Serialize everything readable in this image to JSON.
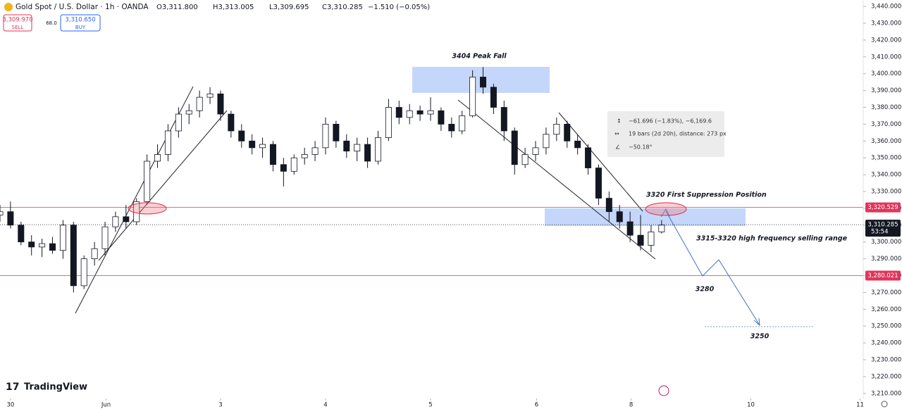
{
  "header": {
    "symbol": "Gold Spot / U.S. Dollar · 1h · OANDA",
    "ohlc": [
      "O3,311.800",
      "H3,313.005",
      "L3,309.695",
      "C3,310.285"
    ],
    "change": "−1.510 (−0.05%)",
    "sell_price": "3,309.970",
    "sell": "SELL",
    "spread": "68.0",
    "buy_price": "3,310.650",
    "buy": "BUY",
    "logo": "TradingView"
  },
  "chart_data": {
    "type": "candlestick",
    "x": [
      0,
      1,
      2,
      3,
      4,
      5,
      6,
      7,
      8,
      9,
      10,
      11,
      12,
      13,
      14,
      15,
      16,
      17,
      18,
      19,
      20,
      21,
      22,
      23,
      24,
      25,
      26,
      27,
      28,
      29,
      30,
      31,
      32,
      33,
      34,
      35,
      36,
      37,
      38,
      39,
      40,
      41,
      42,
      43,
      44,
      45,
      46,
      47,
      48,
      49,
      50,
      51,
      52,
      53,
      54,
      55,
      56,
      57,
      58,
      59,
      60,
      61,
      62,
      63
    ],
    "open": [
      3316,
      3318,
      3310,
      3300,
      3297,
      3299,
      3295,
      3310,
      3274,
      3290,
      3296,
      3309,
      3315,
      3312,
      3324,
      3348,
      3352,
      3366,
      3376,
      3378,
      3386,
      3388,
      3376,
      3366,
      3360,
      3356,
      3358,
      3346,
      3342,
      3350,
      3352,
      3356,
      3370,
      3360,
      3354,
      3358,
      3348,
      3362,
      3380,
      3374,
      3378,
      3376,
      3378,
      3370,
      3366,
      3375,
      3398,
      3392,
      3380,
      3366,
      3346,
      3352,
      3356,
      3364,
      3370,
      3360,
      3356,
      3344,
      3326,
      3318,
      3312,
      3304,
      3298,
      3306
    ],
    "high": [
      3322,
      3324,
      3312,
      3304,
      3302,
      3303,
      3313,
      3312,
      3292,
      3300,
      3312,
      3318,
      3322,
      3326,
      3352,
      3358,
      3370,
      3380,
      3382,
      3390,
      3392,
      3390,
      3378,
      3370,
      3364,
      3362,
      3360,
      3350,
      3352,
      3356,
      3360,
      3374,
      3372,
      3364,
      3362,
      3362,
      3366,
      3385,
      3384,
      3382,
      3381,
      3386,
      3380,
      3374,
      3378,
      3402,
      3404,
      3394,
      3384,
      3368,
      3356,
      3360,
      3368,
      3374,
      3372,
      3364,
      3358,
      3346,
      3330,
      3322,
      3318,
      3316,
      3310,
      3313
    ],
    "low": [
      3312,
      3308,
      3298,
      3292,
      3291,
      3293,
      3290,
      3270,
      3272,
      3286,
      3292,
      3306,
      3308,
      3310,
      3322,
      3344,
      3348,
      3362,
      3370,
      3374,
      3382,
      3372,
      3362,
      3356,
      3352,
      3350,
      3342,
      3333,
      3340,
      3346,
      3348,
      3352,
      3356,
      3350,
      3348,
      3344,
      3346,
      3360,
      3370,
      3370,
      3372,
      3372,
      3366,
      3362,
      3364,
      3374,
      3388,
      3376,
      3360,
      3340,
      3344,
      3348,
      3352,
      3360,
      3356,
      3352,
      3340,
      3322,
      3312,
      3308,
      3300,
      3295,
      3294,
      3305
    ],
    "close": [
      3318,
      3310,
      3300,
      3297,
      3299,
      3295,
      3310,
      3274,
      3290,
      3296,
      3309,
      3315,
      3312,
      3324,
      3348,
      3352,
      3366,
      3376,
      3378,
      3386,
      3388,
      3376,
      3366,
      3360,
      3356,
      3358,
      3346,
      3342,
      3350,
      3352,
      3356,
      3370,
      3360,
      3354,
      3358,
      3348,
      3362,
      3380,
      3374,
      3378,
      3376,
      3378,
      3370,
      3366,
      3375,
      3398,
      3392,
      3380,
      3366,
      3346,
      3352,
      3356,
      3364,
      3370,
      3360,
      3356,
      3344,
      3326,
      3318,
      3312,
      3304,
      3298,
      3306,
      3310
    ],
    "up_color": "#ffffff",
    "down_color": "#131722",
    "xlim": [
      0,
      82
    ],
    "xticks": [
      {
        "value": 1,
        "label": "30"
      },
      {
        "value": 10.1,
        "label": "Jun"
      },
      {
        "value": 21,
        "label": "3"
      },
      {
        "value": 31,
        "label": "4"
      },
      {
        "value": 41,
        "label": "5"
      },
      {
        "value": 51.1,
        "label": "6"
      },
      {
        "value": 60.1,
        "label": "8"
      },
      {
        "value": 71.5,
        "label": "10"
      },
      {
        "value": 81.9,
        "label": "11"
      }
    ],
    "ylim": [
      3207,
      3443.8
    ],
    "yticks": [
      {
        "value": 3210,
        "label": "3,210.000"
      },
      {
        "value": 3220,
        "label": "3,220.000"
      },
      {
        "value": 3230,
        "label": "3,230.000"
      },
      {
        "value": 3240,
        "label": "3,240.000"
      },
      {
        "value": 3250,
        "label": "3,250.000"
      },
      {
        "value": 3260,
        "label": "3,260.000"
      },
      {
        "value": 3270,
        "label": "3,270.000"
      },
      {
        "value": 3280,
        "label": "3,280.000"
      },
      {
        "value": 3290,
        "label": "3,290.000"
      },
      {
        "value": 3300,
        "label": "3,300.000"
      },
      {
        "value": 3310,
        "label": "3,310.000"
      },
      {
        "value": 3320,
        "label": "3,320.000"
      },
      {
        "value": 3330,
        "label": "3,330.000"
      },
      {
        "value": 3340,
        "label": "3,340.000"
      },
      {
        "value": 3350,
        "label": "3,350.000"
      },
      {
        "value": 3360,
        "label": "3,360.000"
      },
      {
        "value": 3370,
        "label": "3,370.000"
      },
      {
        "value": 3380,
        "label": "3,380.000"
      },
      {
        "value": 3390,
        "label": "3,390.000"
      },
      {
        "value": 3400,
        "label": "3,400.000"
      },
      {
        "value": 3410,
        "label": "3,410.000"
      },
      {
        "value": 3420,
        "label": "3,420.000"
      },
      {
        "value": 3430,
        "label": "3,430.000"
      },
      {
        "value": 3440,
        "label": "3,440.000"
      }
    ],
    "price_lines": [
      {
        "value": 3320.529,
        "label": "3,320.529",
        "color": "#e0355a"
      },
      {
        "value": 3280.021,
        "label": "3,280.021",
        "color": "#e0355a"
      }
    ],
    "last_price": {
      "value": 3310.285,
      "label": "3,310.285",
      "countdown": "53:54",
      "color": "#131722"
    },
    "annotations": [
      "3404 Peak Fall",
      "3320 First Suppression Position",
      "3315-3320 high frequency selling range",
      "3280",
      "3250"
    ],
    "measure": [
      "−61.696 (−1.83%), −6,169.6",
      "19 bars (2d 20h), distance: 273 px",
      "−50.18°"
    ]
  }
}
